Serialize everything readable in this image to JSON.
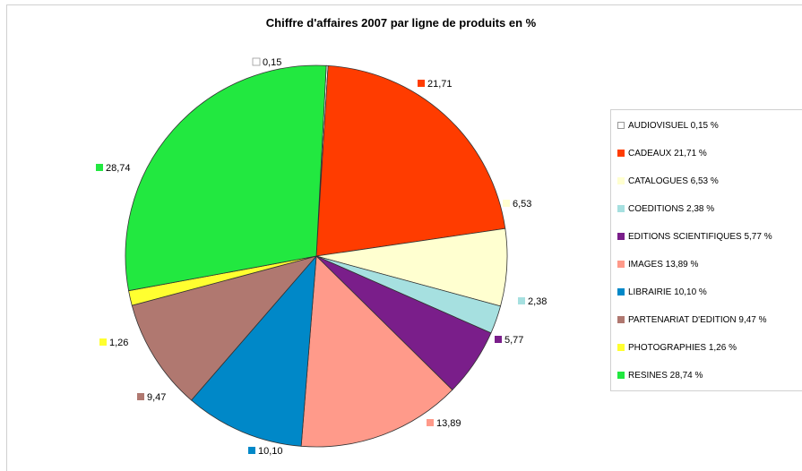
{
  "chart_data": {
    "type": "pie",
    "title": "Chiffre d'affaires 2007 par ligne de produits en %",
    "slices": [
      {
        "value": 0.15,
        "data_label": "0,15",
        "legend": "AUDIOVISUEL 0,15 %",
        "color": "#ffffff"
      },
      {
        "value": 21.71,
        "data_label": "21,71",
        "legend": "CADEAUX 21,71 %",
        "color": "#ff3c00"
      },
      {
        "value": 6.53,
        "data_label": "6,53",
        "legend": "CATALOGUES 6,53 %",
        "color": "#ffffd0"
      },
      {
        "value": 2.38,
        "data_label": "2,38",
        "legend": "COEDITIONS 2,38 %",
        "color": "#a6e0e0"
      },
      {
        "value": 5.77,
        "data_label": "5,77",
        "legend": "EDITIONS SCIENTIFIQUES 5,77 %",
        "color": "#7a1e8a"
      },
      {
        "value": 13.89,
        "data_label": "13,89",
        "legend": "IMAGES 13,89 %",
        "color": "#ff9a8a"
      },
      {
        "value": 10.1,
        "data_label": "10,10",
        "legend": "LIBRAIRIE 10,10 %",
        "color": "#0088c8"
      },
      {
        "value": 9.47,
        "data_label": "9,47",
        "legend": "PARTENARIAT D'EDITION 9,47 %",
        "color": "#b07870"
      },
      {
        "value": 1.26,
        "data_label": "1,26",
        "legend": "PHOTOGRAPHIES 1,26 %",
        "color": "#ffff30"
      },
      {
        "value": 28.74,
        "data_label": "28,74",
        "legend": "RESINES 28,74 %",
        "color": "#22e840"
      }
    ],
    "legend_position": "right",
    "border_color": "#333333"
  }
}
